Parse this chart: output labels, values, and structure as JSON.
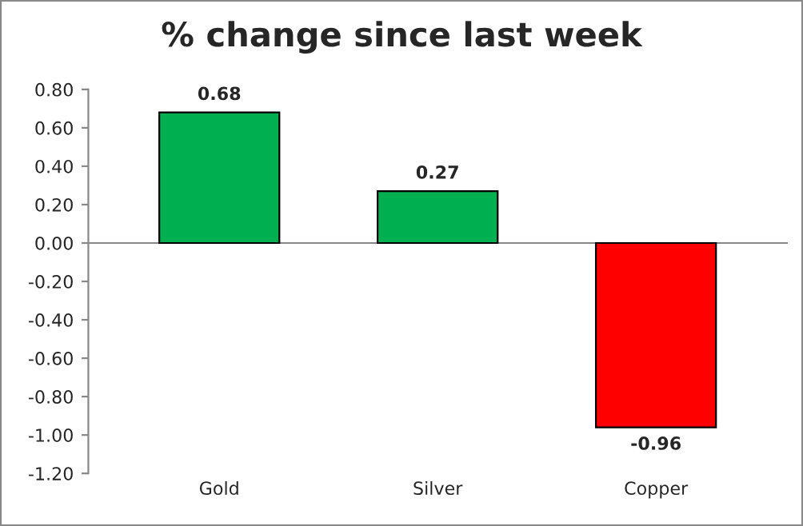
{
  "chart_data": {
    "type": "bar",
    "title": "% change since last week",
    "categories": [
      "Gold",
      "Silver",
      "Copper"
    ],
    "values": [
      0.68,
      0.27,
      -0.96
    ],
    "colors": [
      "#00b050",
      "#00b050",
      "#ff0000"
    ],
    "ylim": [
      -1.2,
      0.8
    ],
    "yticks": [
      {
        "value": -1.2,
        "label": "-1.20"
      },
      {
        "value": -1.0,
        "label": "-1.00"
      },
      {
        "value": -0.8,
        "label": "-0.80"
      },
      {
        "value": -0.6,
        "label": "-0.60"
      },
      {
        "value": -0.4,
        "label": "-0.40"
      },
      {
        "value": -0.2,
        "label": "-0.20"
      },
      {
        "value": 0,
        "label": "0.00"
      },
      {
        "value": 0.2,
        "label": "0.20"
      },
      {
        "value": 0.4,
        "label": "0.40"
      },
      {
        "value": 0.6,
        "label": "0.60"
      },
      {
        "value": 0.8,
        "label": "0.80"
      }
    ],
    "value_labels": [
      "0.68",
      "0.27",
      "-0.96"
    ],
    "legend": false
  }
}
